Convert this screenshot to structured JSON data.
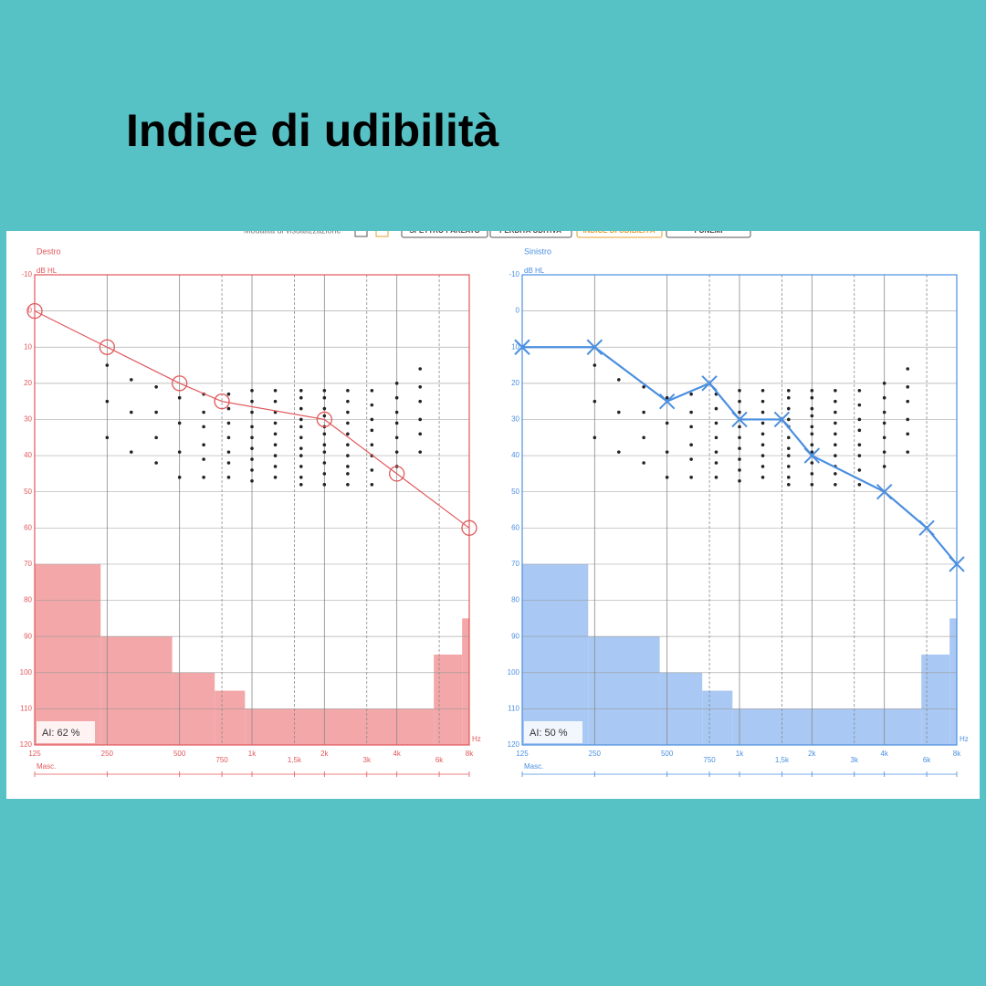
{
  "title": "Indice di udibilità",
  "toolbar": {
    "label": "Modalità di visualizzazione",
    "buttons": [
      "SPETTRO PARLATO",
      "PERDITA UDITIVA",
      "INDICE DI UDIBILITÀ",
      "FONEMI"
    ]
  },
  "chart_data": [
    {
      "type": "line",
      "title": "Destro",
      "ylabel": "dB HL",
      "xlabel": "Hz",
      "masking_label": "Masc.",
      "annotation": "AI: 62 %",
      "color": "#e2585b",
      "fill": "#f3a7a8",
      "marker": "o",
      "xscale": "log",
      "y_inverted": true,
      "xlim": [
        125,
        8000
      ],
      "ylim": [
        -10,
        120
      ],
      "xticks": [
        125,
        250,
        500,
        750,
        {
          "value": 1000,
          "label": "1k"
        },
        {
          "value": 1500,
          "label": "1,5k"
        },
        {
          "value": 2000,
          "label": "2k"
        },
        {
          "value": 3000,
          "label": "3k"
        },
        {
          "value": 4000,
          "label": "4k"
        },
        {
          "value": 6000,
          "label": "6k"
        },
        {
          "value": 8000,
          "label": "8k"
        }
      ],
      "yticks": [
        -10,
        0,
        10,
        20,
        30,
        40,
        50,
        60,
        70,
        80,
        90,
        100,
        110,
        120
      ],
      "series": [
        {
          "x": [
            125,
            250,
            500,
            750,
            2000,
            4000,
            8000
          ],
          "values": [
            0,
            10,
            20,
            25,
            30,
            45,
            60
          ]
        }
      ],
      "masking": {
        "bins": [
          125,
          235,
          466,
          700,
          935,
          5700,
          7470,
          8000
        ],
        "values": [
          70,
          90,
          100,
          105,
          110,
          95,
          85
        ]
      },
      "dots": {
        "x": [
          250,
          315,
          400,
          500,
          630,
          800,
          1000,
          1250,
          1600,
          2000,
          2500,
          3150,
          4000,
          5000
        ],
        "values": [
          [
            15,
            25,
            35
          ],
          [
            19,
            28,
            39
          ],
          [
            21,
            28,
            35,
            42
          ],
          [
            24,
            31,
            39,
            46
          ],
          [
            23,
            28,
            32,
            37,
            41,
            46
          ],
          [
            23,
            27,
            31,
            35,
            39,
            42,
            46
          ],
          [
            22,
            25,
            28,
            32,
            35,
            38,
            41,
            44,
            47
          ],
          [
            22,
            25,
            28,
            31,
            34,
            37,
            40,
            43,
            46
          ],
          [
            22,
            24,
            27,
            30,
            32,
            35,
            38,
            40,
            43,
            46,
            48
          ],
          [
            22,
            24,
            27,
            29,
            32,
            34,
            37,
            39,
            42,
            45,
            48
          ],
          [
            22,
            25,
            28,
            31,
            34,
            37,
            40,
            43,
            45,
            48
          ],
          [
            22,
            26,
            30,
            33,
            37,
            40,
            44,
            48
          ],
          [
            20,
            24,
            28,
            31,
            35,
            39,
            43
          ],
          [
            16,
            21,
            25,
            30,
            34,
            39
          ]
        ]
      }
    },
    {
      "type": "line",
      "title": "Sinistro",
      "ylabel": "dB HL",
      "xlabel": "Hz",
      "masking_label": "Masc.",
      "annotation": "AI: 50 %",
      "color": "#4a8fe0",
      "fill": "#a9c8f3",
      "marker": "x",
      "xscale": "log",
      "y_inverted": true,
      "xlim": [
        125,
        8000
      ],
      "ylim": [
        -10,
        120
      ],
      "xticks": [
        125,
        250,
        500,
        750,
        {
          "value": 1000,
          "label": "1k"
        },
        {
          "value": 1500,
          "label": "1,5k"
        },
        {
          "value": 2000,
          "label": "2k"
        },
        {
          "value": 3000,
          "label": "3k"
        },
        {
          "value": 4000,
          "label": "4k"
        },
        {
          "value": 6000,
          "label": "6k"
        },
        {
          "value": 8000,
          "label": "8k"
        }
      ],
      "yticks": [
        -10,
        0,
        10,
        20,
        30,
        40,
        50,
        60,
        70,
        80,
        90,
        100,
        110,
        120
      ],
      "series": [
        {
          "x": [
            125,
            250,
            500,
            750,
            1000,
            1500,
            2000,
            4000,
            6000,
            8000
          ],
          "values": [
            10,
            10,
            25,
            20,
            30,
            30,
            40,
            50,
            60,
            70
          ]
        }
      ],
      "masking": {
        "bins": [
          125,
          235,
          466,
          700,
          935,
          5700,
          7470,
          8000
        ],
        "values": [
          70,
          90,
          100,
          105,
          110,
          95,
          85
        ]
      },
      "dots": {
        "x": [
          250,
          315,
          400,
          500,
          630,
          800,
          1000,
          1250,
          1600,
          2000,
          2500,
          3150,
          4000,
          5000
        ],
        "values": [
          [
            15,
            25,
            35
          ],
          [
            19,
            28,
            39
          ],
          [
            21,
            28,
            35,
            42
          ],
          [
            24,
            31,
            39,
            46
          ],
          [
            23,
            28,
            32,
            37,
            41,
            46
          ],
          [
            23,
            27,
            31,
            35,
            39,
            42,
            46
          ],
          [
            22,
            25,
            28,
            32,
            35,
            38,
            41,
            44,
            47
          ],
          [
            22,
            25,
            28,
            31,
            34,
            37,
            40,
            43,
            46
          ],
          [
            22,
            24,
            27,
            30,
            32,
            35,
            38,
            40,
            43,
            46,
            48
          ],
          [
            22,
            24,
            27,
            29,
            32,
            34,
            37,
            39,
            42,
            45,
            48
          ],
          [
            22,
            25,
            28,
            31,
            34,
            37,
            40,
            43,
            45,
            48
          ],
          [
            22,
            26,
            30,
            33,
            37,
            40,
            44,
            48
          ],
          [
            20,
            24,
            28,
            31,
            35,
            39,
            43
          ],
          [
            16,
            21,
            25,
            30,
            34,
            39
          ]
        ]
      }
    }
  ]
}
